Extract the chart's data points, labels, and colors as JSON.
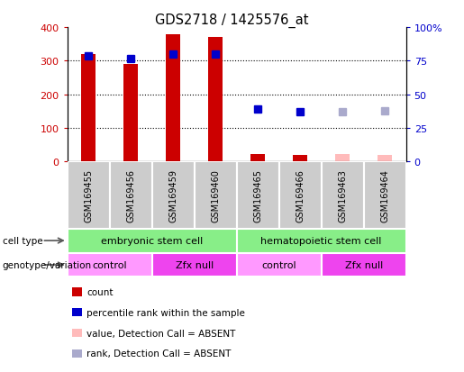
{
  "title": "GDS2718 / 1425576_at",
  "samples": [
    "GSM169455",
    "GSM169456",
    "GSM169459",
    "GSM169460",
    "GSM169465",
    "GSM169466",
    "GSM169463",
    "GSM169464"
  ],
  "count_values": [
    320,
    290,
    380,
    370,
    22,
    20,
    0,
    0
  ],
  "count_absent": [
    0,
    0,
    0,
    0,
    0,
    0,
    22,
    18
  ],
  "rank_values": [
    315,
    305,
    320,
    320,
    0,
    0,
    0,
    0
  ],
  "rank_absent_dark": [
    0,
    0,
    0,
    0,
    155,
    148,
    0,
    0
  ],
  "rank_absent_light": [
    0,
    0,
    0,
    0,
    0,
    0,
    148,
    150
  ],
  "left_ylim": [
    0,
    400
  ],
  "right_ylim": [
    0,
    100
  ],
  "left_yticks": [
    0,
    100,
    200,
    300,
    400
  ],
  "right_yticks": [
    0,
    25,
    50,
    75,
    100
  ],
  "right_yticklabels": [
    "0",
    "25",
    "50",
    "75",
    "100%"
  ],
  "bar_color_dark_red": "#CC0000",
  "bar_color_pink": "#FFBBBB",
  "rank_color_dark_blue": "#0000CC",
  "rank_color_light_blue": "#AAAACC",
  "cell_type_green": "#88EE88",
  "genotype_light_magenta": "#FF99FF",
  "genotype_dark_magenta": "#EE44EE",
  "sample_bg_color": "#CCCCCC",
  "cell_type_groups": [
    {
      "label": "embryonic stem cell",
      "start": 0,
      "end": 4
    },
    {
      "label": "hematopoietic stem cell",
      "start": 4,
      "end": 8
    }
  ],
  "genotype_groups": [
    {
      "label": "control",
      "start": 0,
      "end": 2,
      "color_idx": 0
    },
    {
      "label": "Zfx null",
      "start": 2,
      "end": 4,
      "color_idx": 1
    },
    {
      "label": "control",
      "start": 4,
      "end": 6,
      "color_idx": 0
    },
    {
      "label": "Zfx null",
      "start": 6,
      "end": 8,
      "color_idx": 1
    }
  ],
  "legend_items": [
    {
      "label": "count",
      "color": "#CC0000"
    },
    {
      "label": "percentile rank within the sample",
      "color": "#0000CC"
    },
    {
      "label": "value, Detection Call = ABSENT",
      "color": "#FFBBBB"
    },
    {
      "label": "rank, Detection Call = ABSENT",
      "color": "#AAAACC"
    }
  ],
  "bar_width": 0.35
}
